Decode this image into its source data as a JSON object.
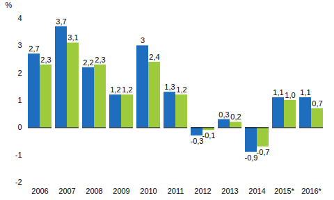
{
  "chart_data": {
    "type": "bar",
    "y_label": "%",
    "categories": [
      "2006",
      "2007",
      "2008",
      "2009",
      "2010",
      "2011",
      "2012",
      "2013",
      "2014",
      "2015*",
      "2016*"
    ],
    "series": [
      {
        "color": "#1f6dbf",
        "values": [
          2.7,
          3.7,
          2.2,
          1.2,
          3,
          1.3,
          -0.3,
          0.3,
          -0.9,
          1.1,
          1.1
        ],
        "value_labels": [
          "2,7",
          "3,7",
          "2,2",
          "1,2",
          "3",
          "1,3",
          "-0,3",
          "0,3",
          "-0,9",
          "1,1",
          "1,1"
        ]
      },
      {
        "color": "#9dcb3b",
        "values": [
          2.3,
          3.1,
          2.3,
          1.2,
          2.4,
          1.2,
          -0.1,
          0.2,
          -0.7,
          1.0,
          0.7
        ],
        "value_labels": [
          "2,3",
          "3,1",
          "2,3",
          "1,2",
          "2,4",
          "1,2",
          "-0,1",
          "0,2",
          "-0,7",
          "1,0",
          "0,7"
        ]
      }
    ],
    "ylim": [
      -2,
      4
    ],
    "yticks": [
      -2,
      -1,
      0,
      1,
      2,
      3,
      4
    ],
    "grid": false,
    "data_labels": true
  }
}
